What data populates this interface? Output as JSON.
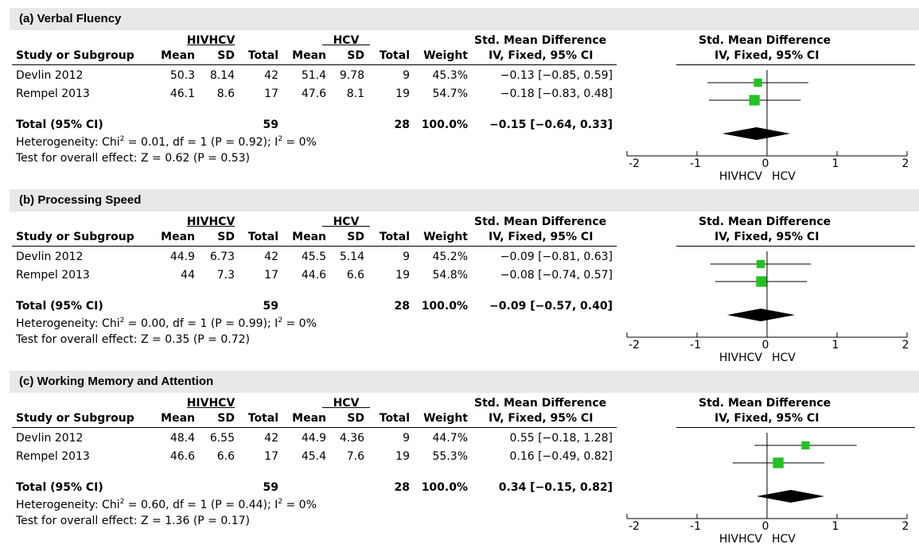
{
  "column_headers": {
    "study": "Study or Subgroup",
    "group1": "HIVHCV",
    "group2": "HCV",
    "mean": "Mean",
    "sd": "SD",
    "total": "Total",
    "weight": "Weight",
    "smd_title": "Std. Mean Difference",
    "smd_method": "IV, Fixed, 95% CI"
  },
  "panels": [
    {
      "title": "(a) Verbal Fluency",
      "rows": [
        {
          "study": "Devlin 2012",
          "m1": "50.3",
          "sd1": "8.14",
          "n1": "42",
          "m2": "51.4",
          "sd2": "9.78",
          "n2": "9",
          "weight": "45.3%",
          "ci": "−0.13 [−0.85, 0.59]"
        },
        {
          "study": "Rempel 2013",
          "m1": "46.1",
          "sd1": "8.6",
          "n1": "17",
          "m2": "47.6",
          "sd2": "8.1",
          "n2": "19",
          "weight": "54.7%",
          "ci": "−0.18 [−0.83, 0.48]"
        }
      ],
      "total": {
        "label": "Total (95% CI)",
        "n1": "59",
        "n2": "28",
        "weight": "100.0%",
        "ci": "−0.15 [−0.64, 0.33]"
      },
      "heterogeneity": {
        "prefix": "Heterogeneity: Chi",
        "sup1": "2",
        "mid": " = 0.01, df = 1 (P = 0.92); I",
        "sup2": "2",
        "suffix": " = 0%"
      },
      "overall": "Test for overall effect: Z = 0.62 (P = 0.53)"
    },
    {
      "title": "(b) Processing Speed",
      "rows": [
        {
          "study": "Devlin 2012",
          "m1": "44.9",
          "sd1": "6.73",
          "n1": "42",
          "m2": "45.5",
          "sd2": "5.14",
          "n2": "9",
          "weight": "45.2%",
          "ci": "−0.09 [−0.81, 0.63]"
        },
        {
          "study": "Rempel 2013",
          "m1": "44",
          "sd1": "7.3",
          "n1": "17",
          "m2": "44.6",
          "sd2": "6.6",
          "n2": "19",
          "weight": "54.8%",
          "ci": "−0.08 [−0.74, 0.57]"
        }
      ],
      "total": {
        "label": "Total (95% CI)",
        "n1": "59",
        "n2": "28",
        "weight": "100.0%",
        "ci": "−0.09 [−0.57, 0.40]"
      },
      "heterogeneity": {
        "prefix": "Heterogeneity: Chi",
        "sup1": "2",
        "mid": " = 0.00, df = 1 (P = 0.99); I",
        "sup2": "2",
        "suffix": " = 0%"
      },
      "overall": "Test for overall effect: Z = 0.35 (P = 0.72)"
    },
    {
      "title": "(c) Working Memory and Attention",
      "rows": [
        {
          "study": "Devlin 2012",
          "m1": "48.4",
          "sd1": "6.55",
          "n1": "42",
          "m2": "44.9",
          "sd2": "4.36",
          "n2": "9",
          "weight": "44.7%",
          "ci": "0.55 [−0.18, 1.28]"
        },
        {
          "study": "Rempel 2013",
          "m1": "46.6",
          "sd1": "6.6",
          "n1": "17",
          "m2": "45.4",
          "sd2": "7.6",
          "n2": "19",
          "weight": "55.3%",
          "ci": "0.16 [−0.49, 0.82]"
        }
      ],
      "total": {
        "label": "Total (95% CI)",
        "n1": "59",
        "n2": "28",
        "weight": "100.0%",
        "ci": "0.34 [−0.15, 0.82]"
      },
      "heterogeneity": {
        "prefix": "Heterogeneity: Chi",
        "sup1": "2",
        "mid": " = 0.60, df = 1 (P = 0.44); I",
        "sup2": "2",
        "suffix": " = 0%"
      },
      "overall": "Test for overall effect: Z = 1.36 (P = 0.17)"
    }
  ],
  "chart_data": [
    {
      "type": "forest",
      "title": "(a) Verbal Fluency",
      "header": [
        "Std. Mean Difference",
        "IV, Fixed, 95% CI"
      ],
      "xlim": [
        -2,
        2
      ],
      "ticks": [
        -2,
        -1,
        0,
        1,
        2
      ],
      "tick_labels": [
        "-2",
        "-1",
        "0",
        "1",
        "2"
      ],
      "favours": [
        "HIVHCV",
        "HCV"
      ],
      "colors": {
        "square": "#22c222",
        "diamond": "#000000"
      },
      "studies": [
        {
          "name": "Devlin 2012",
          "est": -0.13,
          "lo": -0.85,
          "hi": 0.59,
          "weight": 45.3
        },
        {
          "name": "Rempel 2013",
          "est": -0.18,
          "lo": -0.83,
          "hi": 0.48,
          "weight": 54.7
        }
      ],
      "pooled": {
        "est": -0.15,
        "lo": -0.64,
        "hi": 0.33
      }
    },
    {
      "type": "forest",
      "title": "(b) Processing Speed",
      "header": [
        "Std. Mean Difference",
        "IV, Fixed, 95% CI"
      ],
      "xlim": [
        -2,
        2
      ],
      "ticks": [
        -2,
        -1,
        0,
        1,
        2
      ],
      "tick_labels": [
        "-2",
        "-1",
        "0",
        "1",
        "2"
      ],
      "favours": [
        "HIVHCV",
        "HCV"
      ],
      "colors": {
        "square": "#22c222",
        "diamond": "#000000"
      },
      "studies": [
        {
          "name": "Devlin 2012",
          "est": -0.09,
          "lo": -0.81,
          "hi": 0.63,
          "weight": 45.2
        },
        {
          "name": "Rempel 2013",
          "est": -0.08,
          "lo": -0.74,
          "hi": 0.57,
          "weight": 54.8
        }
      ],
      "pooled": {
        "est": -0.09,
        "lo": -0.57,
        "hi": 0.4
      }
    },
    {
      "type": "forest",
      "title": "(c) Working Memory and Attention",
      "header": [
        "Std. Mean Difference",
        "IV, Fixed, 95% CI"
      ],
      "xlim": [
        -2,
        2
      ],
      "ticks": [
        -2,
        -1,
        0,
        1,
        2
      ],
      "tick_labels": [
        "-2",
        "-1",
        "0",
        "1",
        "2"
      ],
      "favours": [
        "HIVHCV",
        "HCV"
      ],
      "colors": {
        "square": "#22c222",
        "diamond": "#000000"
      },
      "studies": [
        {
          "name": "Devlin 2012",
          "est": 0.55,
          "lo": -0.18,
          "hi": 1.28,
          "weight": 44.7
        },
        {
          "name": "Rempel 2013",
          "est": 0.16,
          "lo": -0.49,
          "hi": 0.82,
          "weight": 55.3
        }
      ],
      "pooled": {
        "est": 0.34,
        "lo": -0.15,
        "hi": 0.82
      }
    }
  ]
}
